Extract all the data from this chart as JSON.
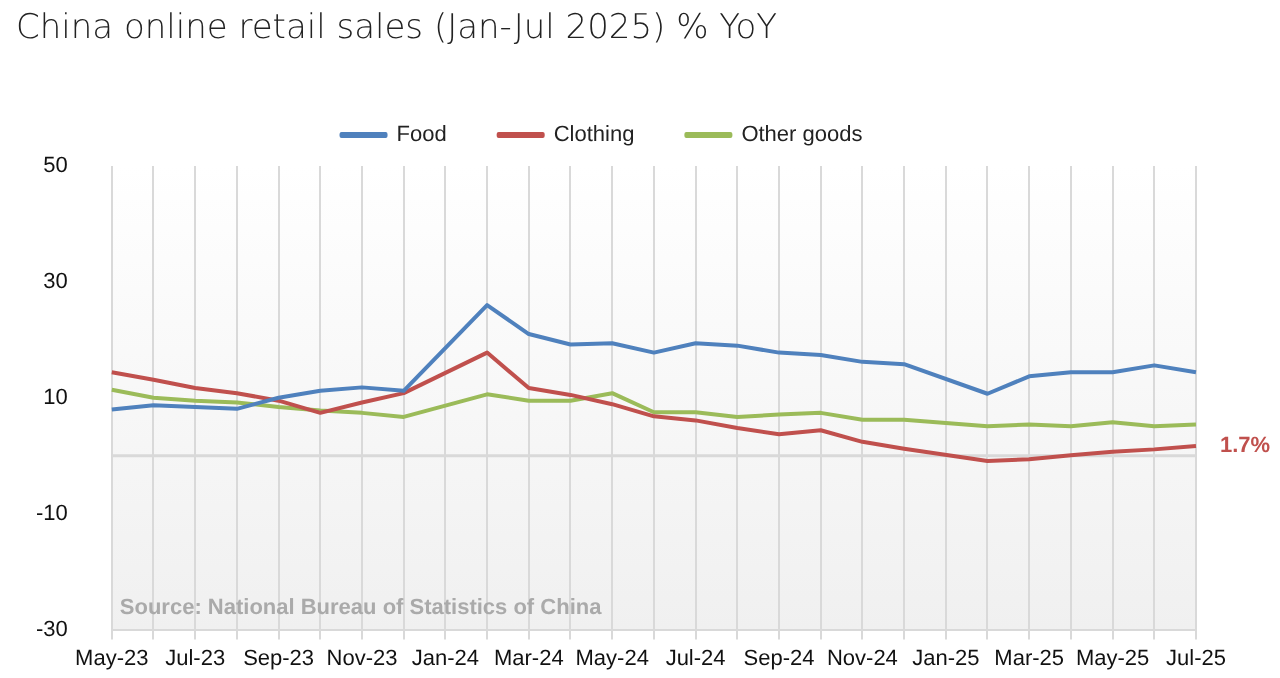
{
  "chart_data": {
    "type": "line",
    "title": "China online retail sales (Jan-Jul 2025) % YoY",
    "categories": [
      "May-23",
      null,
      "Jul-23",
      null,
      "Sep-23",
      null,
      "Nov-23",
      null,
      "Jan-24",
      null,
      "Mar-24",
      null,
      "May-24",
      null,
      "Jul-24",
      null,
      "Sep-24",
      null,
      "Nov-24",
      null,
      "Jan-25",
      null,
      "Mar-25",
      null,
      "May-25",
      null,
      "Jul-25"
    ],
    "series": [
      {
        "name": "Food",
        "color": "#4f81bd",
        "values": [
          8,
          8.7,
          8.4,
          8.1,
          10,
          11.2,
          11.8,
          11.2,
          null,
          26,
          21,
          19.2,
          19.4,
          17.8,
          19.4,
          19,
          17.8,
          17.4,
          16.2,
          15.8,
          null,
          10.7,
          13.7,
          14.4,
          14.4,
          15.6,
          14.4
        ]
      },
      {
        "name": "Clothing",
        "color": "#c0504d",
        "values": [
          14.4,
          13.1,
          11.7,
          10.8,
          9.5,
          7.4,
          9.2,
          10.8,
          null,
          17.8,
          11.7,
          10.5,
          8.9,
          6.8,
          6.1,
          4.8,
          3.7,
          4.4,
          2.4,
          1.2,
          null,
          -0.9,
          -0.6,
          0.1,
          0.7,
          1.1,
          1.7
        ]
      },
      {
        "name": "Other goods",
        "color": "#9bbb59",
        "values": [
          11.4,
          10,
          9.5,
          9.2,
          8.4,
          7.8,
          7.4,
          6.7,
          null,
          10.6,
          9.5,
          9.5,
          10.8,
          7.5,
          7.5,
          6.7,
          7.1,
          7.4,
          6.2,
          6.2,
          null,
          5.1,
          5.4,
          5.1,
          5.8,
          5.1,
          5.4
        ]
      }
    ],
    "ylim": [
      -30,
      50
    ],
    "yticks": [
      50,
      30,
      10,
      -10,
      -30
    ],
    "grid": "x",
    "legend": "top",
    "marker": "none",
    "line_style": "solid",
    "ref_lines": [
      {
        "axis": "y",
        "value": 0,
        "color": "#d9d9d9"
      }
    ],
    "annotations": [
      {
        "text": "1.7%",
        "x": "Jul-25",
        "y": 1.7
      },
      "Source: National Bureau of Statistics of China"
    ]
  }
}
